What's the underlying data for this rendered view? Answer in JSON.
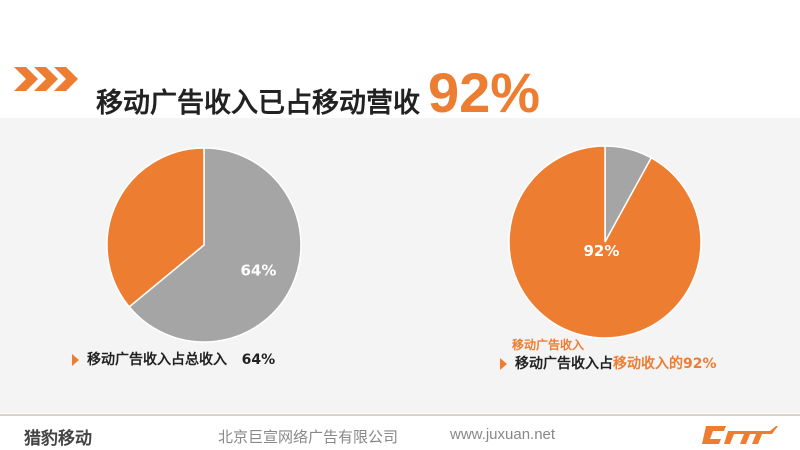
{
  "header": {
    "title": "移动广告收入已占移动营收",
    "highlight": "92%"
  },
  "chart_data": [
    {
      "type": "pie",
      "slices": [
        {
          "label": "64%",
          "value": 64,
          "color": "#A5A5A5"
        },
        {
          "value": 36,
          "color": "#ED7D31"
        }
      ],
      "caption": "移动广告收入占总收入",
      "caption_value": "64%"
    },
    {
      "type": "pie",
      "slices": [
        {
          "value": 8,
          "color": "#A5A5A5"
        },
        {
          "label": "92%",
          "value": 92,
          "color": "#ED7D31"
        }
      ],
      "series_label": "移动广告收入",
      "caption": "移动广告收入占",
      "caption_highlight": "移动收入的92%"
    }
  ],
  "footer": {
    "brand": "猎豹移动",
    "company": "北京巨宣网络广告有限公司",
    "url": "www.juxuan.net",
    "logo": "cmr"
  },
  "colors": {
    "accent": "#ED7D31",
    "gray": "#A5A5A5"
  }
}
